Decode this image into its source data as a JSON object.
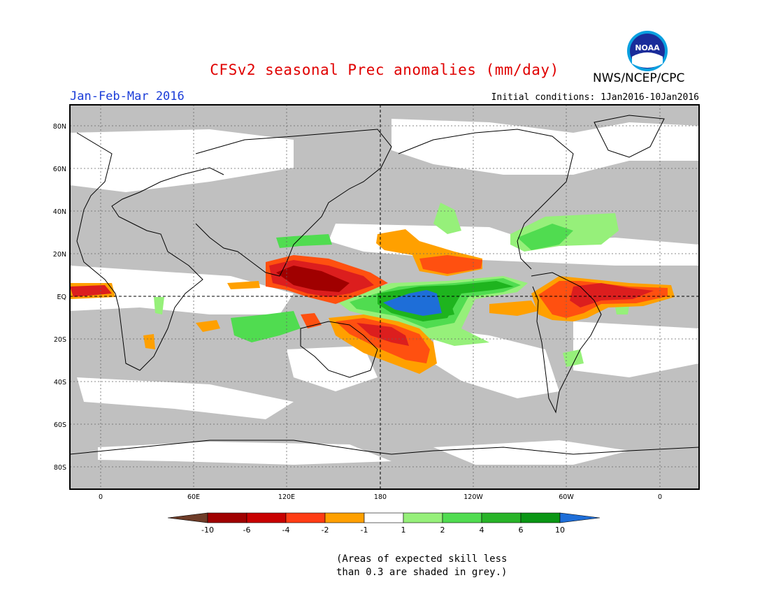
{
  "header": {
    "title": "CFSv2 seasonal Prec anomalies (mm/day)",
    "organization": "NWS/NCEP/CPC",
    "logo_text": "NOAA",
    "season": "Jan-Feb-Mar 2016",
    "initial_conditions": "Initial conditions: 1Jan2016-10Jan2016"
  },
  "map": {
    "lat_labels": [
      "80N",
      "60N",
      "40N",
      "20N",
      "EQ",
      "20S",
      "40S",
      "60S",
      "80S"
    ],
    "lon_labels": [
      "0",
      "60E",
      "120E",
      "180",
      "120W",
      "60W",
      "0"
    ],
    "colors": {
      "missing_skill_grey": "#c0c0c0",
      "dry_extreme": "#a00000",
      "dry_strong": "#dc1e1e",
      "dry_moderate": "#ff5010",
      "dry_weak": "#ffa000",
      "wet_weak": "#96f07a",
      "wet_moderate": "#50dc50",
      "wet_strong": "#1eb41e",
      "wet_extreme": "#1e6ed8"
    }
  },
  "colorbar": {
    "labels": [
      "-10",
      "-6",
      "-4",
      "-2",
      "-1",
      "1",
      "2",
      "4",
      "6",
      "10"
    ],
    "colors": [
      "#6e3c28",
      "#a00000",
      "#c80000",
      "#ff3c14",
      "#ffa000",
      "#ffffff",
      "#96f07a",
      "#50dc50",
      "#28b428",
      "#0a9614",
      "#1e6ed8"
    ]
  },
  "note": {
    "line1": "(Areas of expected skill less",
    "line2": "than 0.3 are shaded in grey.)"
  }
}
